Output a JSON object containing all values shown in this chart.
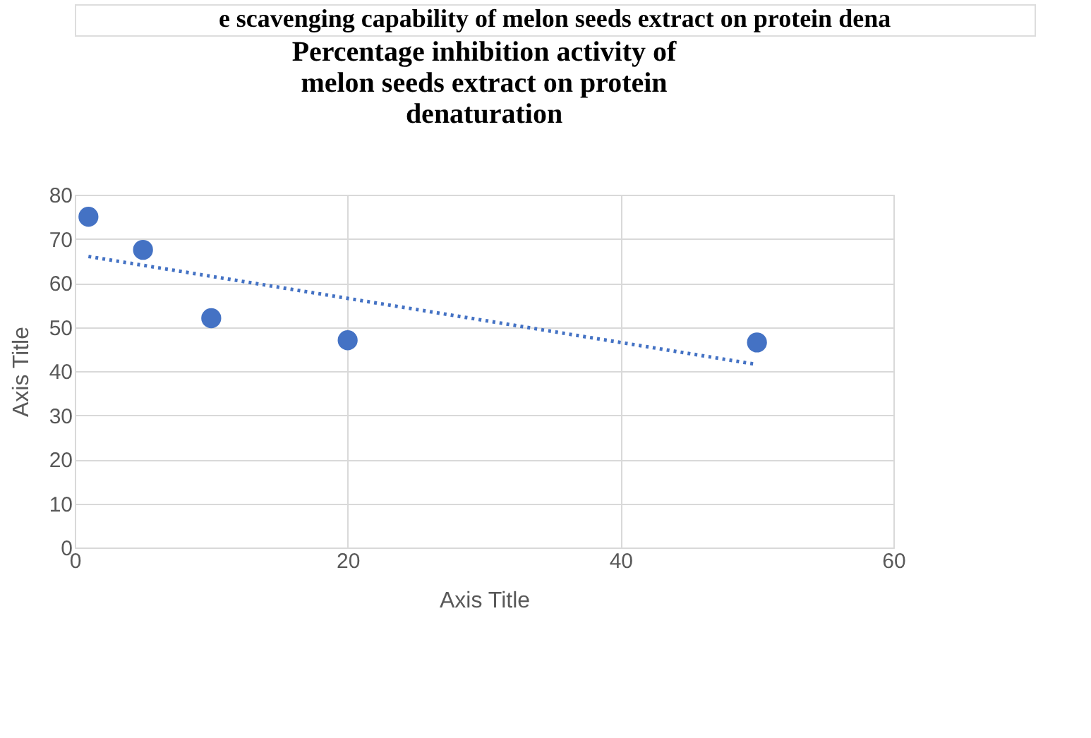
{
  "chart_data": {
    "type": "scatter",
    "title": "Percentage inhibition activity of\nmelon seeds extract on protein\ndenaturation",
    "annotations": [
      "e scavenging capability of melon seeds extract on protein dena"
    ],
    "xlabel": "Axis Title",
    "ylabel": "Axis Title",
    "series": [
      {
        "color": "#4472c4",
        "marker": "circle",
        "x": [
          1,
          5,
          10,
          20,
          50
        ],
        "values": [
          75,
          67.5,
          52,
          47,
          46.5
        ]
      },
      {
        "type": "line",
        "color": "#4472c4",
        "line_style": "dotted",
        "x": [
          1,
          50
        ],
        "values": [
          66,
          41.5
        ]
      }
    ],
    "xlim": [
      0,
      60
    ],
    "xticks": [
      0,
      20,
      40,
      60
    ],
    "ylim": [
      0,
      80
    ],
    "yticks": [
      0,
      10,
      20,
      30,
      40,
      50,
      60,
      70,
      80
    ],
    "grid": true
  }
}
